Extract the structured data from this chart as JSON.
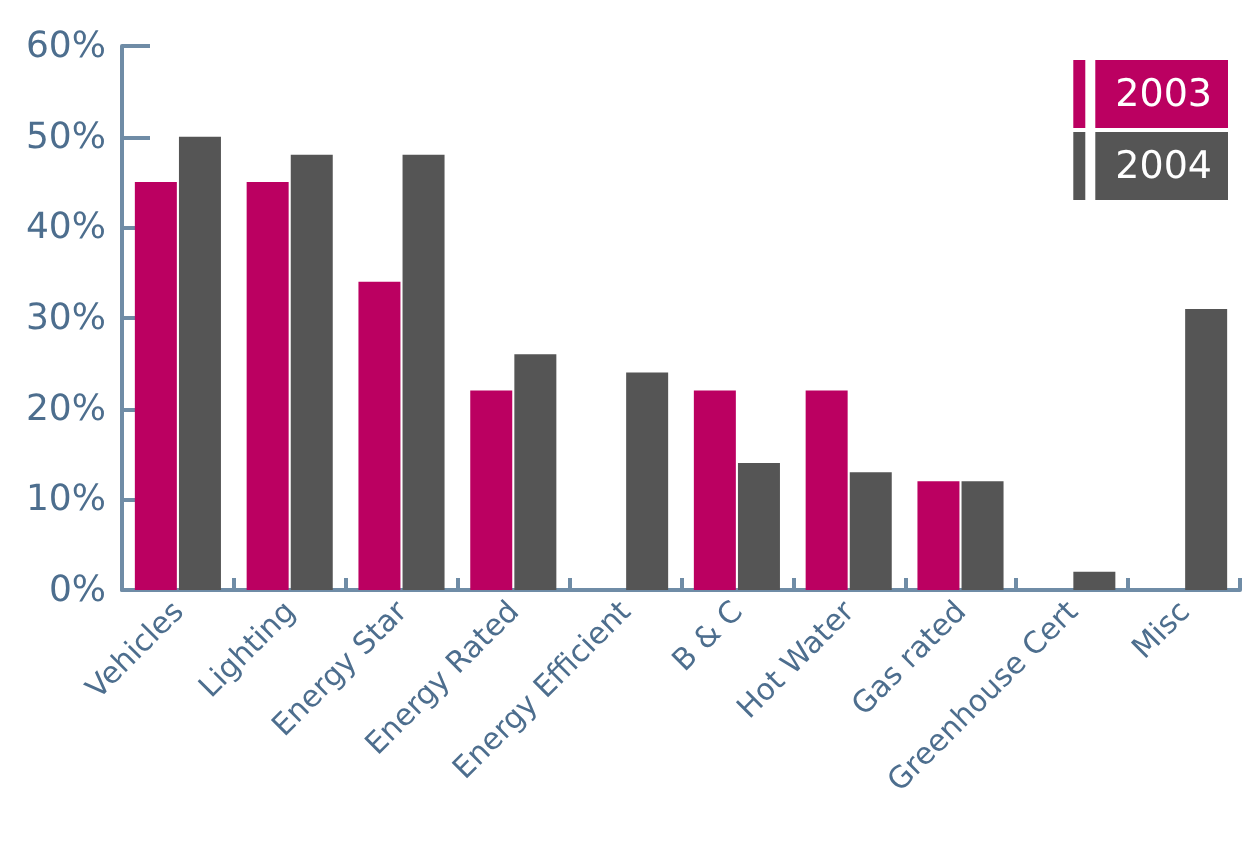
{
  "chart_data": {
    "type": "bar",
    "categories": [
      "Vehicles",
      "Lighting",
      "Energy Star",
      "Energy Rated",
      "Energy Efficient",
      "B & C",
      "Hot Water",
      "Gas rated",
      "Greenhouse Cert",
      "Misc"
    ],
    "series": [
      {
        "name": "2003",
        "color": "#bb0061",
        "values": [
          45,
          45,
          34,
          22,
          null,
          22,
          22,
          12,
          null,
          null
        ]
      },
      {
        "name": "2004",
        "color": "#555555",
        "values": [
          50,
          48,
          48,
          26,
          24,
          14,
          13,
          12,
          2,
          31
        ]
      }
    ],
    "ylim": [
      0,
      60
    ],
    "yticks": [
      {
        "value": 0,
        "label": "0%"
      },
      {
        "value": 10,
        "label": "10%"
      },
      {
        "value": 20,
        "label": "20%"
      },
      {
        "value": 30,
        "label": "30%"
      },
      {
        "value": 40,
        "label": "40%"
      },
      {
        "value": 50,
        "label": "50%"
      },
      {
        "value": 60,
        "label": "60%"
      }
    ],
    "legend": "top right"
  }
}
